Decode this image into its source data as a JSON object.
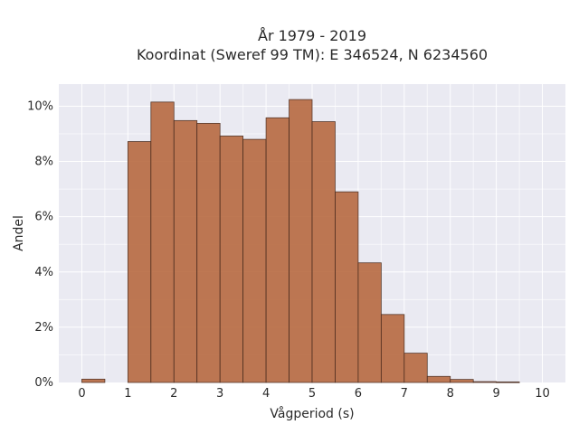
{
  "chart_data": {
    "type": "bar",
    "title": [
      "År 1979 - 2019",
      "Koordinat (Sweref 99 TM): E 346524, N 6234560"
    ],
    "xlabel": "Vågperiod (s)",
    "ylabel": "Andel",
    "xlim": [
      -0.5,
      10.5
    ],
    "ylim": [
      0,
      10.8
    ],
    "xticks": [
      0,
      1,
      2,
      3,
      4,
      5,
      6,
      7,
      8,
      9,
      10
    ],
    "xtick_labels": [
      "0",
      "1",
      "2",
      "3",
      "4",
      "5",
      "6",
      "7",
      "8",
      "9",
      "10"
    ],
    "yticks": [
      0,
      2,
      4,
      6,
      8,
      10
    ],
    "ytick_labels": [
      "0%",
      "2%",
      "4%",
      "6%",
      "8%",
      "10%"
    ],
    "bin_width": 0.5,
    "bins": [
      {
        "start": 0.0,
        "value": 0.12
      },
      {
        "start": 1.0,
        "value": 8.72
      },
      {
        "start": 1.5,
        "value": 10.15
      },
      {
        "start": 2.0,
        "value": 9.48
      },
      {
        "start": 2.5,
        "value": 9.38
      },
      {
        "start": 3.0,
        "value": 8.92
      },
      {
        "start": 3.5,
        "value": 8.8
      },
      {
        "start": 4.0,
        "value": 9.58
      },
      {
        "start": 4.5,
        "value": 10.24
      },
      {
        "start": 5.0,
        "value": 9.44
      },
      {
        "start": 5.5,
        "value": 6.9
      },
      {
        "start": 6.0,
        "value": 4.33
      },
      {
        "start": 6.5,
        "value": 2.46
      },
      {
        "start": 7.0,
        "value": 1.06
      },
      {
        "start": 7.5,
        "value": 0.22
      },
      {
        "start": 8.0,
        "value": 0.11
      },
      {
        "start": 8.5,
        "value": 0.03
      },
      {
        "start": 9.0,
        "value": 0.02
      }
    ],
    "grid": true,
    "colors": {
      "bar": "#b96d45",
      "edge": "#4a2a1c",
      "background": "#eaeaf2",
      "grid": "#ffffff"
    }
  }
}
